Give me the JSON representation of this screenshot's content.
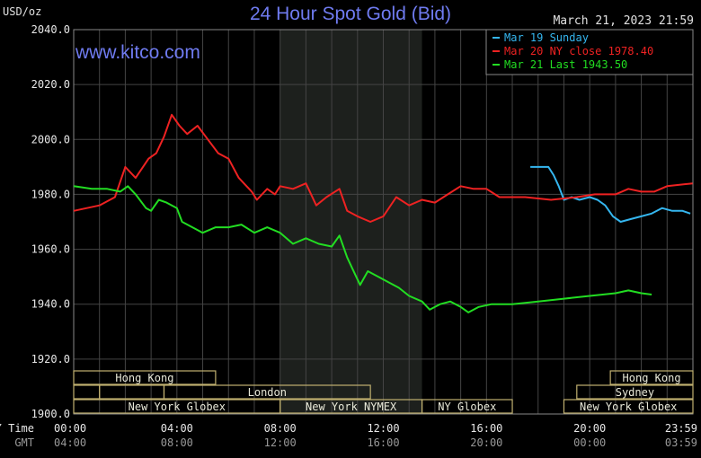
{
  "header": {
    "title": "24 Hour Spot Gold (Bid)",
    "unit": "USD/oz",
    "datetime": "March 21, 2023 21:59",
    "website": "www.kitco.com"
  },
  "colors": {
    "background": "#000000",
    "grid": "#444444",
    "axis_text": "#e8e8e8",
    "title": "#6f7bf0",
    "shaded_session": "#1d201d",
    "session_border": "#c0b070",
    "mar19": "#35b6ef",
    "mar20": "#ee2222",
    "mar21": "#22dd22"
  },
  "sessions": {
    "top_row": [
      {
        "label": "Hong Kong",
        "start": 0,
        "end": 5.5
      },
      {
        "label": "Hong Kong",
        "start": 20.8,
        "end": 24
      }
    ],
    "middle_row": [
      {
        "label": "",
        "start": 0,
        "end": 1
      },
      {
        "label": "",
        "start": 1,
        "end": 3.5
      },
      {
        "label": "London",
        "start": 3.5,
        "end": 11.5
      },
      {
        "label": "Sydney",
        "start": 19.5,
        "end": 24
      }
    ],
    "bottom_row": [
      {
        "label": "New York Globex",
        "start": 0,
        "end": 8
      },
      {
        "label": "New York NYMEX",
        "start": 8,
        "end": 13.5
      },
      {
        "label": "NY Globex",
        "start": 13.5,
        "end": 17
      },
      {
        "label": "New York Globex",
        "start": 19,
        "end": 24
      }
    ]
  },
  "xaxis": {
    "row1_title": "NY Time",
    "row2_title": "GMT",
    "ny_ticks": [
      "00:00",
      "04:00",
      "08:00",
      "12:00",
      "16:00",
      "20:00",
      "23:59"
    ],
    "gmt_ticks": [
      "04:00",
      "08:00",
      "12:00",
      "16:00",
      "20:00",
      "00:00",
      "03:59"
    ]
  },
  "chart_data": {
    "type": "line",
    "title": "24 Hour Spot Gold (Bid)",
    "ylabel": "USD/oz",
    "xlabel": "NY Time",
    "ylim": [
      1900,
      2040
    ],
    "xlim": [
      0,
      24
    ],
    "yticks": [
      "2040.0",
      "2020.0",
      "2000.0",
      "1980.0",
      "1960.0",
      "1940.0",
      "1920.0",
      "1900.0"
    ],
    "grid": true,
    "shaded_region": [
      8,
      13.5
    ],
    "legend": {
      "position": "top-right"
    },
    "series": [
      {
        "name": "Mar 19 Sunday",
        "color": "#35b6ef",
        "points": [
          [
            17.7,
            1990
          ],
          [
            18.4,
            1990
          ],
          [
            18.6,
            1987
          ],
          [
            18.8,
            1983
          ],
          [
            19.0,
            1978
          ],
          [
            19.3,
            1979
          ],
          [
            19.6,
            1978
          ],
          [
            20.0,
            1979
          ],
          [
            20.3,
            1978
          ],
          [
            20.6,
            1976
          ],
          [
            20.9,
            1972
          ],
          [
            21.2,
            1970
          ],
          [
            21.6,
            1971
          ],
          [
            22.0,
            1972
          ],
          [
            22.4,
            1973
          ],
          [
            22.8,
            1975
          ],
          [
            23.2,
            1974
          ],
          [
            23.6,
            1974
          ],
          [
            23.9,
            1973
          ]
        ]
      },
      {
        "name": "Mar 20 NY close 1978.40",
        "color": "#ee2222",
        "points": [
          [
            0,
            1974
          ],
          [
            1.0,
            1976
          ],
          [
            1.6,
            1979
          ],
          [
            2.0,
            1990
          ],
          [
            2.4,
            1986
          ],
          [
            2.9,
            1993
          ],
          [
            3.2,
            1995
          ],
          [
            3.5,
            2001
          ],
          [
            3.8,
            2009
          ],
          [
            4.1,
            2005
          ],
          [
            4.4,
            2002
          ],
          [
            4.8,
            2005
          ],
          [
            5.2,
            2000
          ],
          [
            5.6,
            1995
          ],
          [
            6.0,
            1993
          ],
          [
            6.4,
            1986
          ],
          [
            6.9,
            1981
          ],
          [
            7.1,
            1978
          ],
          [
            7.5,
            1982
          ],
          [
            7.8,
            1980
          ],
          [
            8.0,
            1983
          ],
          [
            8.5,
            1982
          ],
          [
            9.0,
            1984
          ],
          [
            9.4,
            1976
          ],
          [
            9.8,
            1979
          ],
          [
            10.3,
            1982
          ],
          [
            10.6,
            1974
          ],
          [
            11.0,
            1972
          ],
          [
            11.5,
            1970
          ],
          [
            12.0,
            1972
          ],
          [
            12.5,
            1979
          ],
          [
            13.0,
            1976
          ],
          [
            13.5,
            1978
          ],
          [
            14.0,
            1977
          ],
          [
            14.5,
            1980
          ],
          [
            15.0,
            1983
          ],
          [
            15.5,
            1982
          ],
          [
            16.0,
            1982
          ],
          [
            16.5,
            1979
          ],
          [
            17.5,
            1979
          ],
          [
            18.5,
            1978
          ],
          [
            19.5,
            1979
          ],
          [
            20.2,
            1980
          ],
          [
            21.0,
            1980
          ],
          [
            21.5,
            1982
          ],
          [
            22.0,
            1981
          ],
          [
            22.5,
            1981
          ],
          [
            23.0,
            1983
          ],
          [
            23.99,
            1984
          ]
        ]
      },
      {
        "name": "Mar 21 Last 1943.50",
        "color": "#22dd22",
        "points": [
          [
            0,
            1983
          ],
          [
            0.7,
            1982
          ],
          [
            1.3,
            1982
          ],
          [
            1.8,
            1981
          ],
          [
            2.1,
            1983
          ],
          [
            2.4,
            1980
          ],
          [
            2.8,
            1975
          ],
          [
            3.0,
            1974
          ],
          [
            3.3,
            1978
          ],
          [
            3.6,
            1977
          ],
          [
            4.0,
            1975
          ],
          [
            4.2,
            1970
          ],
          [
            4.6,
            1968
          ],
          [
            5.0,
            1966
          ],
          [
            5.5,
            1968
          ],
          [
            6.0,
            1968
          ],
          [
            6.5,
            1969
          ],
          [
            7.0,
            1966
          ],
          [
            7.5,
            1968
          ],
          [
            8.0,
            1966
          ],
          [
            8.5,
            1962
          ],
          [
            9.0,
            1964
          ],
          [
            9.5,
            1962
          ],
          [
            10.0,
            1961
          ],
          [
            10.3,
            1965
          ],
          [
            10.6,
            1957
          ],
          [
            10.9,
            1951
          ],
          [
            11.1,
            1947
          ],
          [
            11.4,
            1952
          ],
          [
            11.8,
            1950
          ],
          [
            12.2,
            1948
          ],
          [
            12.6,
            1946
          ],
          [
            13.0,
            1943
          ],
          [
            13.5,
            1941
          ],
          [
            13.8,
            1938
          ],
          [
            14.2,
            1940
          ],
          [
            14.6,
            1941
          ],
          [
            15.0,
            1939
          ],
          [
            15.3,
            1937
          ],
          [
            15.7,
            1939
          ],
          [
            16.2,
            1940
          ],
          [
            17.0,
            1940
          ],
          [
            18.0,
            1941
          ],
          [
            19.0,
            1942
          ],
          [
            20.0,
            1943
          ],
          [
            21.0,
            1944
          ],
          [
            21.5,
            1945
          ],
          [
            22.0,
            1944
          ],
          [
            22.4,
            1943.5
          ]
        ]
      }
    ]
  }
}
